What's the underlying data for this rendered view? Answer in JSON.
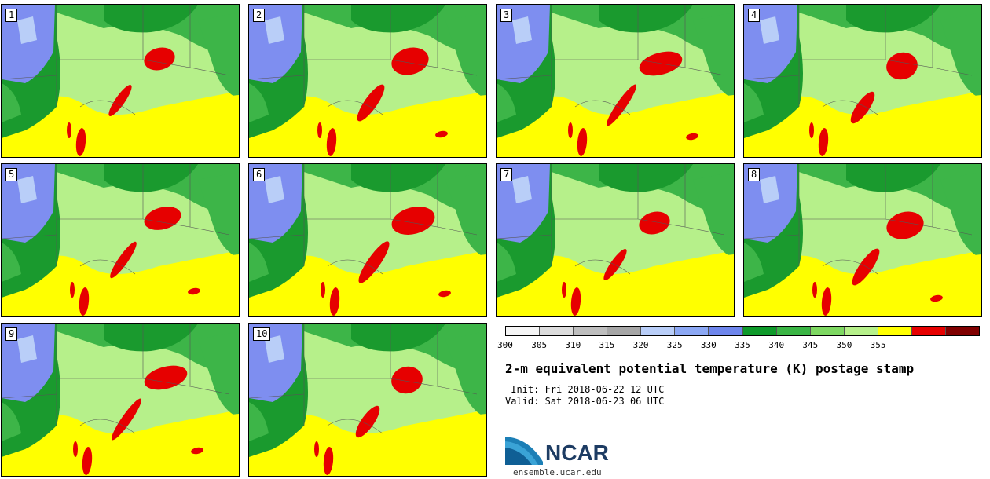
{
  "members": [
    {
      "label": "1",
      "variant": 0
    },
    {
      "label": "2",
      "variant": 1
    },
    {
      "label": "3",
      "variant": 2
    },
    {
      "label": "4",
      "variant": 3
    },
    {
      "label": "5",
      "variant": 4
    },
    {
      "label": "6",
      "variant": 5
    },
    {
      "label": "7",
      "variant": 6
    },
    {
      "label": "8",
      "variant": 7
    },
    {
      "label": "9",
      "variant": 8
    },
    {
      "label": "10",
      "variant": 9
    }
  ],
  "colorbar": {
    "ticks": [
      "300",
      "305",
      "310",
      "315",
      "320",
      "325",
      "330",
      "335",
      "340",
      "345",
      "350",
      "355"
    ],
    "colors": [
      "#f5f5f5",
      "#dcdcdc",
      "#bebebe",
      "#a6a6a6",
      "#b9cef8",
      "#8ca8f4",
      "#6e86ec",
      "#0e9a2a",
      "#3ab544",
      "#7ed862",
      "#b6f08a",
      "#ffff00",
      "#e60000",
      "#800000"
    ]
  },
  "title": "2-m equivalent potential temperature (K) postage stamp",
  "init_label": " Init: Fri 2018-06-22 12 UTC",
  "valid_label": "Valid: Sat 2018-06-23 06 UTC",
  "logo": {
    "name": "NCAR",
    "url": "ensemble.ucar.edu"
  },
  "map_colors": {
    "blue": "#7e8ef0",
    "bluelight": "#b9cef8",
    "darkgreen": "#1a9a2e",
    "green": "#3db548",
    "lightgreen": "#b6f08a",
    "yellow": "#ffff00",
    "red": "#e60000"
  }
}
